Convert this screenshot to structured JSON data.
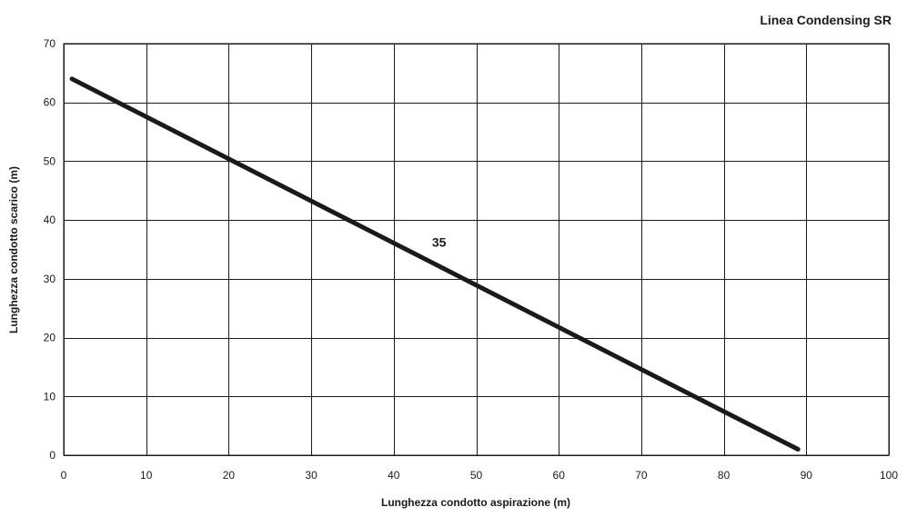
{
  "chart_data": {
    "type": "line",
    "title": "Linea Condensing SR",
    "xlabel": "Lunghezza condotto aspirazione (m)",
    "ylabel": "Lunghezza condotto scarico (m)",
    "xlim": [
      0,
      100
    ],
    "ylim": [
      0,
      70
    ],
    "xticks": [
      0,
      10,
      20,
      30,
      40,
      50,
      60,
      70,
      80,
      90,
      100
    ],
    "yticks": [
      0,
      10,
      20,
      30,
      40,
      50,
      60,
      70
    ],
    "grid": true,
    "series": [
      {
        "name": "35",
        "x": [
          1,
          89
        ],
        "y": [
          64,
          1
        ]
      }
    ],
    "annotations": [
      {
        "text": "35",
        "x": 45.5,
        "y": 35.5
      }
    ]
  }
}
